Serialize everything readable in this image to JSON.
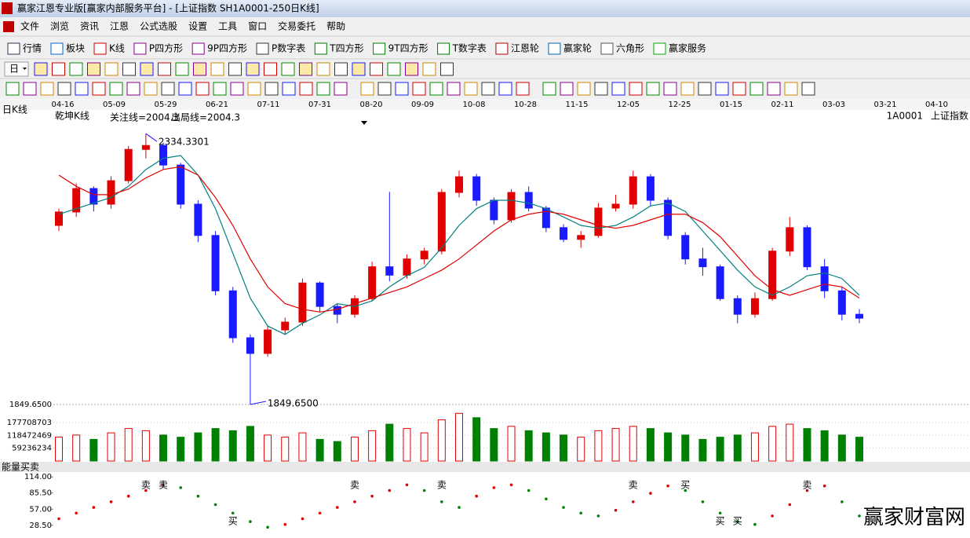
{
  "title_bar": "赢家江恩专业版[赢家内部服务平台] - [上证指数  SH1A0001-250日K线]",
  "menu": [
    "文件",
    "浏览",
    "资讯",
    "江恩",
    "公式选股",
    "设置",
    "工具",
    "窗口",
    "交易委托",
    "帮助"
  ],
  "toolbar": [
    "行情",
    "板块",
    "K线",
    "P四方形",
    "9P四方形",
    "P数字表",
    "T四方形",
    "9T四方形",
    "T数字表",
    "江恩轮",
    "赢家轮",
    "六角形",
    "赢家服务"
  ],
  "period": "日",
  "watermark": "赢家财富网",
  "chart_data": [
    {
      "type": "candlestick",
      "period_label": "日K线",
      "indicator_name": "乾坤K线",
      "focus_line": "关注线=2004.3",
      "exit_line": "出局线=2004.3",
      "symbol_code": "1A0001",
      "symbol_name": "上证指数",
      "date_labels": [
        "04-16",
        "05-09",
        "05-29",
        "06-21",
        "07-11",
        "07-31",
        "08-20",
        "09-09",
        "10-08",
        "10-28",
        "11-15",
        "12-05",
        "12-25",
        "01-15",
        "02-11",
        "03-03",
        "03-21",
        "04-10"
      ],
      "up_color": "#e00000",
      "down_color": "#1a1aff",
      "ylim": [
        1842.6,
        2362.5
      ],
      "yticks": [
        {
          "value": 1849.65,
          "label": "1849.6500"
        }
      ],
      "high_label": 2334.3301,
      "low_label": {
        "value": 1849.65,
        "label": "1849.6500"
      },
      "ohlc": [
        [
          2170,
          2200,
          2160,
          2194
        ],
        [
          2194,
          2245,
          2185,
          2236
        ],
        [
          2236,
          2240,
          2195,
          2208
        ],
        [
          2208,
          2258,
          2200,
          2250
        ],
        [
          2250,
          2312,
          2245,
          2306
        ],
        [
          2306,
          2334.3301,
          2290,
          2313
        ],
        [
          2313,
          2318,
          2270,
          2278
        ],
        [
          2278,
          2282,
          2200,
          2208
        ],
        [
          2208,
          2215,
          2140,
          2152
        ],
        [
          2152,
          2160,
          2045,
          2053
        ],
        [
          2053,
          2060,
          1960,
          1969
        ],
        [
          1969,
          1975,
          1849.65,
          1941
        ],
        [
          1941,
          1990,
          1935,
          1983
        ],
        [
          1983,
          2005,
          1975,
          1997
        ],
        [
          1997,
          2075,
          1990,
          2067
        ],
        [
          2067,
          2070,
          2015,
          2025
        ],
        [
          2025,
          2030,
          1995,
          2011
        ],
        [
          2011,
          2045,
          2005,
          2039
        ],
        [
          2039,
          2105,
          2035,
          2096
        ],
        [
          2096,
          2230,
          2070,
          2081
        ],
        [
          2081,
          2118,
          2075,
          2110
        ],
        [
          2110,
          2130,
          2100,
          2124
        ],
        [
          2124,
          2235,
          2118,
          2229
        ],
        [
          2229,
          2268,
          2220,
          2257
        ],
        [
          2257,
          2262,
          2205,
          2215
        ],
        [
          2215,
          2220,
          2172,
          2180
        ],
        [
          2180,
          2235,
          2175,
          2229
        ],
        [
          2229,
          2240,
          2195,
          2201
        ],
        [
          2201,
          2205,
          2158,
          2166
        ],
        [
          2166,
          2172,
          2140,
          2145
        ],
        [
          2145,
          2160,
          2130,
          2152
        ],
        [
          2152,
          2210,
          2148,
          2201
        ],
        [
          2201,
          2225,
          2195,
          2208
        ],
        [
          2208,
          2268,
          2200,
          2257
        ],
        [
          2257,
          2262,
          2205,
          2215
        ],
        [
          2215,
          2220,
          2145,
          2152
        ],
        [
          2152,
          2158,
          2100,
          2110
        ],
        [
          2110,
          2130,
          2080,
          2096
        ],
        [
          2096,
          2100,
          2035,
          2039
        ],
        [
          2039,
          2045,
          1995,
          2011
        ],
        [
          2011,
          2050,
          2005,
          2039
        ],
        [
          2039,
          2130,
          2035,
          2124
        ],
        [
          2124,
          2185,
          2115,
          2166
        ],
        [
          2166,
          2170,
          2090,
          2096
        ],
        [
          2096,
          2110,
          2040,
          2053
        ],
        [
          2053,
          2060,
          2000,
          2011
        ],
        [
          2011,
          2020,
          1995,
          2004
        ]
      ],
      "lines": [
        {
          "color": "#008080",
          "values": [
            2190,
            2200,
            2210,
            2220,
            2240,
            2270,
            2290,
            2295,
            2260,
            2200,
            2120,
            2040,
            1990,
            1975,
            1995,
            2010,
            2030,
            2025,
            2035,
            2060,
            2080,
            2095,
            2130,
            2170,
            2200,
            2215,
            2215,
            2210,
            2200,
            2185,
            2170,
            2165,
            2170,
            2185,
            2205,
            2210,
            2195,
            2160,
            2125,
            2090,
            2060,
            2045,
            2060,
            2080,
            2085,
            2075,
            2045
          ]
        },
        {
          "color": "#e00000",
          "values": [
            2260,
            2240,
            2225,
            2225,
            2235,
            2255,
            2270,
            2275,
            2260,
            2220,
            2170,
            2110,
            2060,
            2030,
            2020,
            2015,
            2020,
            2030,
            2040,
            2050,
            2060,
            2075,
            2090,
            2110,
            2135,
            2160,
            2180,
            2190,
            2195,
            2190,
            2180,
            2170,
            2165,
            2170,
            2180,
            2190,
            2190,
            2175,
            2150,
            2115,
            2080,
            2055,
            2045,
            2055,
            2065,
            2060,
            2040
          ]
        }
      ]
    },
    {
      "type": "bar",
      "up_color": "#e00000",
      "down_color": "#008000",
      "ylim": [
        0,
        250000000
      ],
      "yticks": [
        59236234,
        118472469,
        177708703
      ],
      "values": [
        110000000,
        120000000,
        100000000,
        130000000,
        150000000,
        140000000,
        120000000,
        110000000,
        130000000,
        150000000,
        140000000,
        160000000,
        120000000,
        110000000,
        130000000,
        100000000,
        90000000,
        110000000,
        140000000,
        170000000,
        150000000,
        130000000,
        190000000,
        220000000,
        200000000,
        150000000,
        160000000,
        140000000,
        130000000,
        120000000,
        110000000,
        140000000,
        150000000,
        160000000,
        150000000,
        130000000,
        120000000,
        100000000,
        110000000,
        120000000,
        130000000,
        160000000,
        170000000,
        150000000,
        140000000,
        120000000,
        110000000
      ]
    },
    {
      "type": "line",
      "title": "能量买卖",
      "up_color": "#e00000",
      "down_color": "#008000",
      "ylim": [
        6,
        124
      ],
      "yticks": [
        {
          "value": 114,
          "label": "114.00"
        },
        {
          "value": 85.5,
          "label": "85.50"
        },
        {
          "value": 57,
          "label": "57.00"
        },
        {
          "value": 28.5,
          "label": "28.50"
        }
      ],
      "values": [
        40,
        50,
        60,
        70,
        80,
        90,
        100,
        95,
        80,
        65,
        50,
        35,
        25,
        30,
        40,
        50,
        60,
        70,
        80,
        90,
        100,
        90,
        70,
        60,
        80,
        95,
        100,
        90,
        75,
        60,
        50,
        45,
        55,
        70,
        85,
        98,
        90,
        70,
        50,
        35,
        30,
        45,
        65,
        90,
        98,
        70,
        45
      ],
      "signals": [
        null,
        null,
        null,
        null,
        null,
        "卖",
        "卖",
        null,
        null,
        null,
        "买",
        null,
        null,
        null,
        null,
        null,
        null,
        "卖",
        null,
        null,
        null,
        null,
        "卖",
        null,
        null,
        null,
        null,
        null,
        null,
        null,
        null,
        null,
        null,
        "卖",
        null,
        null,
        "买",
        null,
        "买",
        "买",
        null,
        null,
        null,
        "卖",
        null,
        null,
        null
      ]
    }
  ]
}
